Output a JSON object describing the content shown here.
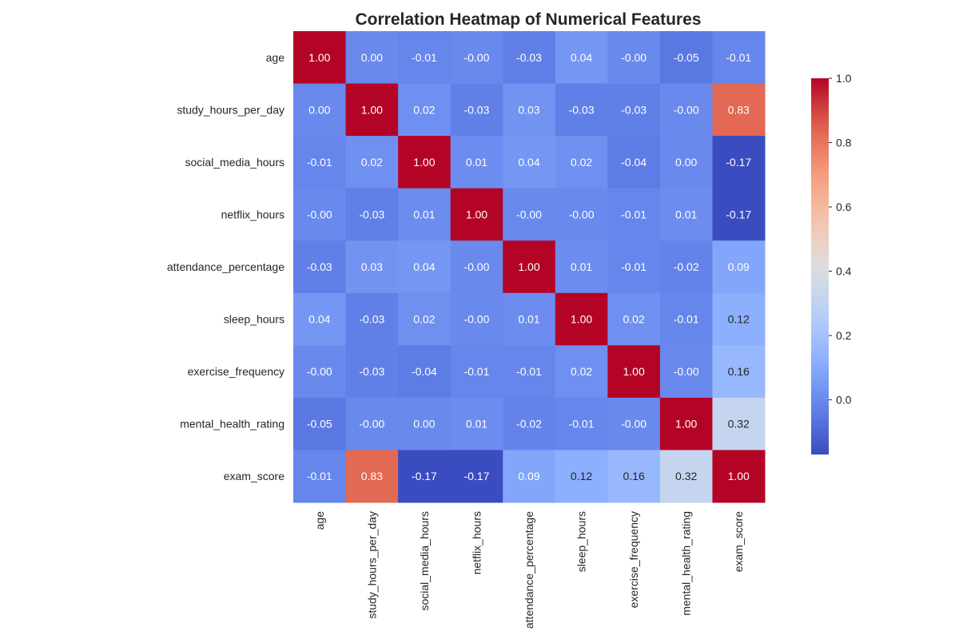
{
  "chart_data": {
    "type": "heatmap",
    "title": "Correlation Heatmap of Numerical Features",
    "xlabel": "",
    "ylabel": "",
    "colormap": "coolwarm",
    "x_labels": [
      "age",
      "study_hours_per_day",
      "social_media_hours",
      "netflix_hours",
      "attendance_percentage",
      "sleep_hours",
      "exercise_frequency",
      "mental_health_rating",
      "exam_score"
    ],
    "y_labels": [
      "age",
      "study_hours_per_day",
      "social_media_hours",
      "netflix_hours",
      "attendance_percentage",
      "sleep_hours",
      "exercise_frequency",
      "mental_health_rating",
      "exam_score"
    ],
    "values": [
      [
        1.0,
        0.0,
        -0.01,
        -0.0,
        -0.03,
        0.04,
        -0.0,
        -0.05,
        -0.01
      ],
      [
        0.0,
        1.0,
        0.02,
        -0.03,
        0.03,
        -0.03,
        -0.03,
        -0.0,
        0.83
      ],
      [
        -0.01,
        0.02,
        1.0,
        0.01,
        0.04,
        0.02,
        -0.04,
        0.0,
        -0.17
      ],
      [
        -0.0,
        -0.03,
        0.01,
        1.0,
        -0.0,
        -0.0,
        -0.01,
        0.01,
        -0.17
      ],
      [
        -0.03,
        0.03,
        0.04,
        -0.0,
        1.0,
        0.01,
        -0.01,
        -0.02,
        0.09
      ],
      [
        0.04,
        -0.03,
        0.02,
        -0.0,
        0.01,
        1.0,
        0.02,
        -0.01,
        0.12
      ],
      [
        -0.0,
        -0.03,
        -0.04,
        -0.01,
        -0.01,
        0.02,
        1.0,
        -0.0,
        0.16
      ],
      [
        -0.05,
        -0.0,
        0.0,
        0.01,
        -0.02,
        -0.01,
        -0.0,
        1.0,
        0.32
      ],
      [
        -0.01,
        0.83,
        -0.17,
        -0.17,
        0.09,
        0.12,
        0.16,
        0.32,
        1.0
      ]
    ],
    "cell_labels": [
      [
        "1.00",
        "0.00",
        "-0.01",
        "-0.00",
        "-0.03",
        "0.04",
        "-0.00",
        "-0.05",
        "-0.01"
      ],
      [
        "0.00",
        "1.00",
        "0.02",
        "-0.03",
        "0.03",
        "-0.03",
        "-0.03",
        "-0.00",
        "0.83"
      ],
      [
        "-0.01",
        "0.02",
        "1.00",
        "0.01",
        "0.04",
        "0.02",
        "-0.04",
        "0.00",
        "-0.17"
      ],
      [
        "-0.00",
        "-0.03",
        "0.01",
        "1.00",
        "-0.00",
        "-0.00",
        "-0.01",
        "0.01",
        "-0.17"
      ],
      [
        "-0.03",
        "0.03",
        "0.04",
        "-0.00",
        "1.00",
        "0.01",
        "-0.01",
        "-0.02",
        "0.09"
      ],
      [
        "0.04",
        "-0.03",
        "0.02",
        "-0.00",
        "0.01",
        "1.00",
        "0.02",
        "-0.01",
        "0.12"
      ],
      [
        "-0.00",
        "-0.03",
        "-0.04",
        "-0.01",
        "-0.01",
        "0.02",
        "1.00",
        "-0.00",
        "0.16"
      ],
      [
        "-0.05",
        "-0.00",
        "0.00",
        "0.01",
        "-0.02",
        "-0.01",
        "-0.00",
        "1.00",
        "0.32"
      ],
      [
        "-0.01",
        "0.83",
        "-0.17",
        "-0.17",
        "0.09",
        "0.12",
        "0.16",
        "0.32",
        "1.00"
      ]
    ],
    "color_range": [
      -0.17,
      1.0
    ],
    "colorbar": {
      "ticks": [
        0.0,
        0.2,
        0.4,
        0.6,
        0.8,
        1.0
      ],
      "tick_labels": [
        "0.0",
        "0.2",
        "0.4",
        "0.6",
        "0.8",
        "1.0"
      ]
    },
    "grid": false,
    "legend": "colorbar-right"
  }
}
